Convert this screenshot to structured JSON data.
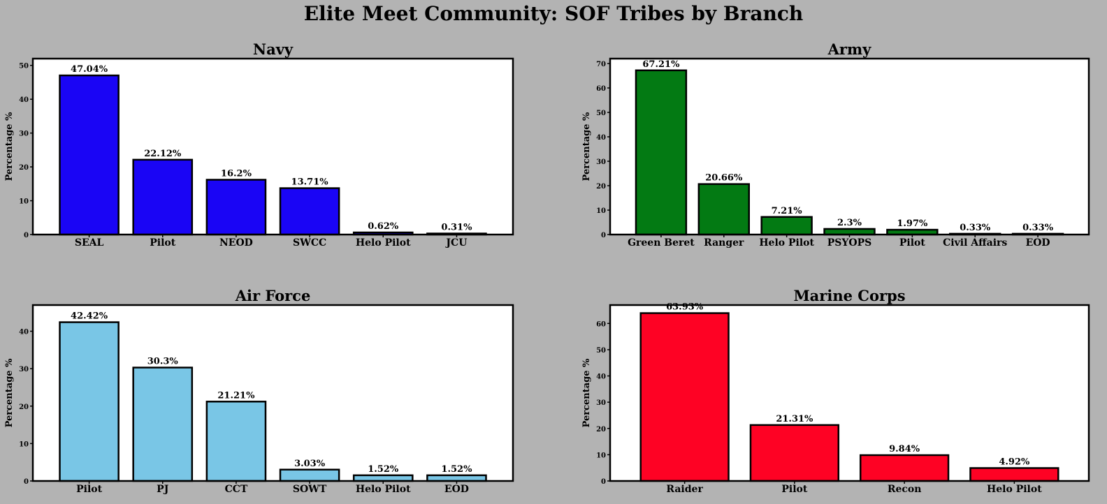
{
  "title": "Elite Meet Community: SOF Tribes by Branch",
  "chart_data": [
    {
      "type": "bar",
      "title": "Navy",
      "ylabel": "Percentage %",
      "xlabel": "",
      "color": "#1a05f5",
      "ylim": [
        0,
        52
      ],
      "yticks": [
        0,
        10,
        20,
        30,
        40,
        50
      ],
      "categories": [
        "SEAL",
        "Pilot",
        "NEOD",
        "SWCC",
        "Helo Pilot",
        "JCU"
      ],
      "values": [
        47.04,
        22.12,
        16.2,
        13.71,
        0.62,
        0.31
      ],
      "labels": [
        "47.04%",
        "22.12%",
        "16.2%",
        "13.71%",
        "0.62%",
        "0.31%"
      ]
    },
    {
      "type": "bar",
      "title": "Army",
      "ylabel": "Percentage %",
      "xlabel": "",
      "color": "#037a13",
      "ylim": [
        0,
        72
      ],
      "yticks": [
        0,
        10,
        20,
        30,
        40,
        50,
        60,
        70
      ],
      "categories": [
        "Green Beret",
        "Ranger",
        "Helo Pilot",
        "PSYOPS",
        "Pilot",
        "Civil Affairs",
        "EOD"
      ],
      "values": [
        67.21,
        20.66,
        7.21,
        2.3,
        1.97,
        0.33,
        0.33
      ],
      "labels": [
        "67.21%",
        "20.66%",
        "7.21%",
        "2.3%",
        "1.97%",
        "0.33%",
        "0.33%"
      ]
    },
    {
      "type": "bar",
      "title": "Air Force",
      "ylabel": "Percentage %",
      "xlabel": "",
      "color": "#79c6e6",
      "ylim": [
        0,
        47
      ],
      "yticks": [
        0,
        10,
        20,
        30,
        40
      ],
      "categories": [
        "Pilot",
        "PJ",
        "CCT",
        "SOWT",
        "Helo Pilot",
        "EOD"
      ],
      "values": [
        42.42,
        30.3,
        21.21,
        3.03,
        1.52,
        1.52
      ],
      "labels": [
        "42.42%",
        "30.3%",
        "21.21%",
        "3.03%",
        "1.52%",
        "1.52%"
      ]
    },
    {
      "type": "bar",
      "title": "Marine Corps",
      "ylabel": "Percentage %",
      "xlabel": "",
      "color": "#fe0224",
      "ylim": [
        0,
        67
      ],
      "yticks": [
        0,
        10,
        20,
        30,
        40,
        50,
        60
      ],
      "categories": [
        "Raider",
        "Pilot",
        "Recon",
        "Helo Pilot"
      ],
      "values": [
        63.93,
        21.31,
        9.84,
        4.92
      ],
      "labels": [
        "63.93%",
        "21.31%",
        "9.84%",
        "4.92%"
      ]
    }
  ]
}
